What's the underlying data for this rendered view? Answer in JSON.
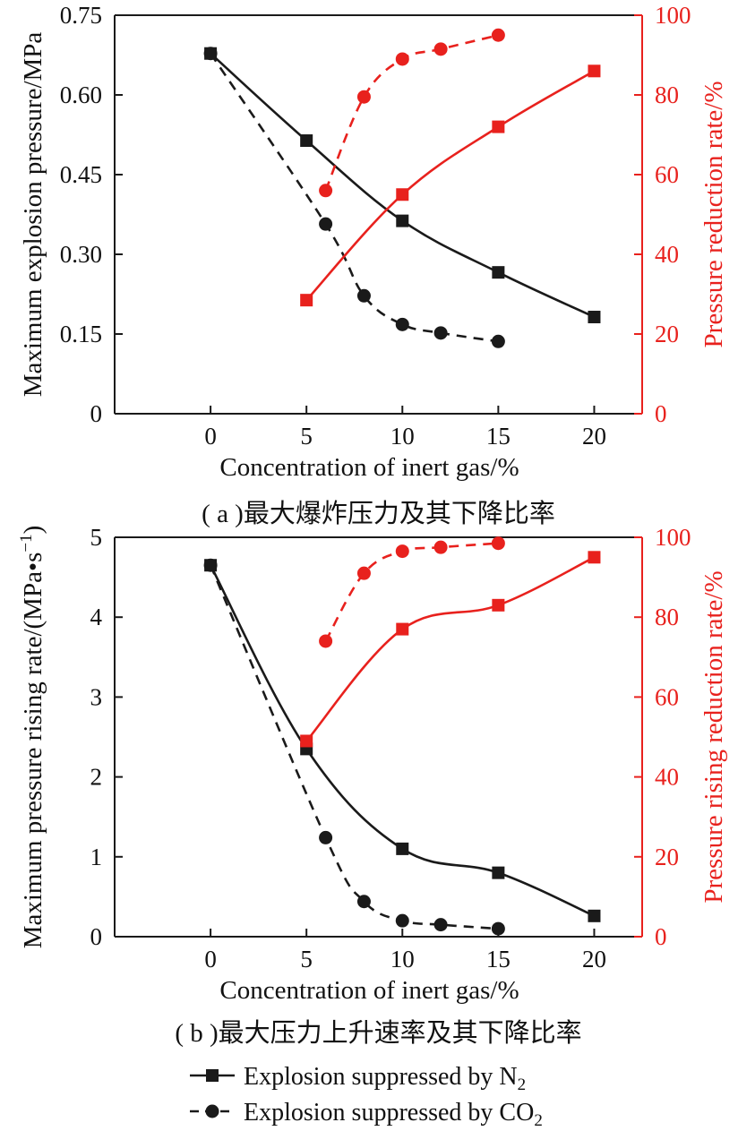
{
  "legend": {
    "n2_label": "Explosion suppressed by N",
    "n2_sub": "2",
    "co2_label": "Explosion suppressed by CO",
    "co2_sub": "2"
  },
  "chart_data": [
    {
      "type": "line",
      "caption": "( a )最大爆炸压力及其下降比率",
      "xlabel": "Concentration of inert gas/%",
      "ylabel_left": "Maximum explosion pressure/MPa",
      "ylabel_right": "Pressure reduction rate/%",
      "xlim": [
        -5,
        22.5
      ],
      "ylim_left": [
        0,
        0.75
      ],
      "ylim_right": [
        0,
        100
      ],
      "x_ticks": [
        "0",
        "5",
        "10",
        "15",
        "20"
      ],
      "y_left_ticks": [
        "0",
        "0.15",
        "0.30",
        "0.45",
        "0.60",
        "0.75"
      ],
      "y_right_ticks": [
        "0",
        "20",
        "40",
        "60",
        "80",
        "100"
      ],
      "series": [
        {
          "axis": "left",
          "gas": "N2",
          "color": "#1a1a1a",
          "marker": "square",
          "dash": false,
          "x": [
            0,
            5,
            10,
            15,
            20
          ],
          "y": [
            0.678,
            0.514,
            0.363,
            0.266,
            0.182
          ]
        },
        {
          "axis": "left",
          "gas": "CO2",
          "color": "#1a1a1a",
          "marker": "circle",
          "dash": true,
          "x": [
            0,
            6,
            8,
            10,
            12,
            15
          ],
          "y": [
            0.678,
            0.357,
            0.222,
            0.168,
            0.152,
            0.136
          ]
        },
        {
          "axis": "right",
          "gas": "N2",
          "color": "#e8211d",
          "marker": "square",
          "dash": false,
          "x": [
            5,
            10,
            15,
            20
          ],
          "y": [
            28.5,
            55,
            72,
            86
          ]
        },
        {
          "axis": "right",
          "gas": "CO2",
          "color": "#e8211d",
          "marker": "circle",
          "dash": true,
          "x": [
            6,
            8,
            10,
            12,
            15
          ],
          "y": [
            56,
            79.5,
            89,
            91.5,
            95
          ]
        }
      ]
    },
    {
      "type": "line",
      "caption": "( b )最大压力上升速率及其下降比率",
      "xlabel": "Concentration of inert gas/%",
      "ylabel_left": "Maximum pressure rising rate/(MPa•s",
      "ylabel_left_sup": "−1",
      "ylabel_left_end": ")",
      "ylabel_right": "Pressure rising reduction rate/%",
      "xlim": [
        -5,
        22.5
      ],
      "ylim_left": [
        0,
        5
      ],
      "ylim_right": [
        0,
        100
      ],
      "x_ticks": [
        "0",
        "5",
        "10",
        "15",
        "20"
      ],
      "y_left_ticks": [
        "0",
        "1",
        "2",
        "3",
        "4",
        "5"
      ],
      "y_right_ticks": [
        "0",
        "20",
        "40",
        "60",
        "80",
        "100"
      ],
      "series": [
        {
          "axis": "left",
          "gas": "N2",
          "color": "#1a1a1a",
          "marker": "square",
          "dash": false,
          "x": [
            0,
            5,
            10,
            15,
            20
          ],
          "y": [
            4.65,
            2.35,
            1.1,
            0.8,
            0.26
          ]
        },
        {
          "axis": "left",
          "gas": "CO2",
          "color": "#1a1a1a",
          "marker": "circle",
          "dash": true,
          "x": [
            0,
            6,
            8,
            10,
            12,
            15
          ],
          "y": [
            4.65,
            1.24,
            0.44,
            0.2,
            0.15,
            0.1
          ]
        },
        {
          "axis": "right",
          "gas": "N2",
          "color": "#e8211d",
          "marker": "square",
          "dash": false,
          "x": [
            5,
            10,
            15,
            20
          ],
          "y": [
            49,
            77,
            83,
            95
          ]
        },
        {
          "axis": "right",
          "gas": "CO2",
          "color": "#e8211d",
          "marker": "circle",
          "dash": true,
          "x": [
            6,
            8,
            10,
            12,
            15
          ],
          "y": [
            74,
            91,
            96.5,
            97.5,
            98.5
          ]
        }
      ]
    }
  ]
}
